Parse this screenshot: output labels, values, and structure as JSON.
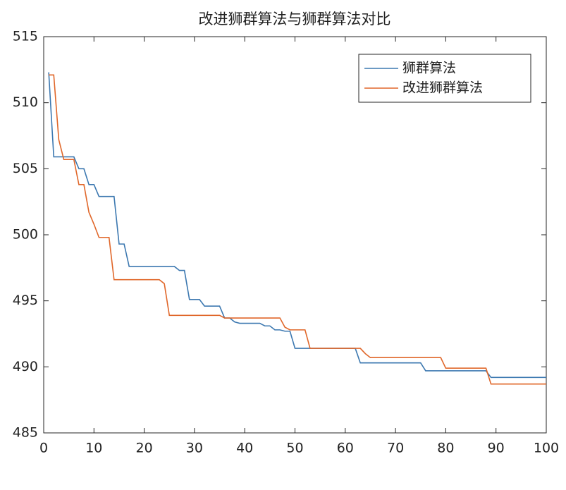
{
  "chart_data": {
    "type": "line",
    "title": "改进狮群算法与狮群算法对比",
    "x": [
      1,
      2,
      3,
      4,
      5,
      6,
      7,
      8,
      9,
      10,
      11,
      12,
      13,
      14,
      15,
      16,
      17,
      18,
      19,
      20,
      21,
      22,
      23,
      24,
      25,
      26,
      27,
      28,
      29,
      30,
      31,
      32,
      33,
      34,
      35,
      36,
      37,
      38,
      39,
      40,
      41,
      42,
      43,
      44,
      45,
      46,
      47,
      48,
      49,
      50,
      51,
      52,
      53,
      54,
      55,
      56,
      57,
      58,
      59,
      60,
      61,
      62,
      63,
      64,
      65,
      66,
      67,
      68,
      69,
      70,
      71,
      72,
      73,
      74,
      75,
      76,
      77,
      78,
      79,
      80,
      81,
      82,
      83,
      84,
      85,
      86,
      87,
      88,
      89,
      90,
      91,
      92,
      93,
      94,
      95,
      96,
      97,
      98,
      99,
      100
    ],
    "series": [
      {
        "name": "狮群算法",
        "color": "#3c78b0",
        "values": [
          512.3,
          505.9,
          505.9,
          505.9,
          505.9,
          505.9,
          505.0,
          505.0,
          503.8,
          503.8,
          502.9,
          502.9,
          502.9,
          502.9,
          499.3,
          499.3,
          497.6,
          497.6,
          497.6,
          497.6,
          497.6,
          497.6,
          497.6,
          497.6,
          497.6,
          497.6,
          497.3,
          497.3,
          495.1,
          495.1,
          495.1,
          494.6,
          494.6,
          494.6,
          494.6,
          493.7,
          493.7,
          493.4,
          493.3,
          493.3,
          493.3,
          493.3,
          493.3,
          493.1,
          493.1,
          492.8,
          492.8,
          492.7,
          492.7,
          491.4,
          491.4,
          491.4,
          491.4,
          491.4,
          491.4,
          491.4,
          491.4,
          491.4,
          491.4,
          491.4,
          491.4,
          491.4,
          490.3,
          490.3,
          490.3,
          490.3,
          490.3,
          490.3,
          490.3,
          490.3,
          490.3,
          490.3,
          490.3,
          490.3,
          490.3,
          489.7,
          489.7,
          489.7,
          489.7,
          489.7,
          489.7,
          489.7,
          489.7,
          489.7,
          489.7,
          489.7,
          489.7,
          489.7,
          489.2,
          489.2,
          489.2,
          489.2,
          489.2,
          489.2,
          489.2,
          489.2,
          489.2,
          489.2,
          489.2,
          489.2
        ]
      },
      {
        "name": "改进狮群算法",
        "color": "#e0672a",
        "values": [
          512.1,
          512.1,
          507.2,
          505.7,
          505.7,
          505.7,
          503.8,
          503.8,
          501.7,
          500.8,
          499.8,
          499.8,
          499.8,
          496.6,
          496.6,
          496.6,
          496.6,
          496.6,
          496.6,
          496.6,
          496.6,
          496.6,
          496.6,
          496.3,
          493.9,
          493.9,
          493.9,
          493.9,
          493.9,
          493.9,
          493.9,
          493.9,
          493.9,
          493.9,
          493.9,
          493.7,
          493.7,
          493.7,
          493.7,
          493.7,
          493.7,
          493.7,
          493.7,
          493.7,
          493.7,
          493.7,
          493.7,
          493.0,
          492.8,
          492.8,
          492.8,
          492.8,
          491.4,
          491.4,
          491.4,
          491.4,
          491.4,
          491.4,
          491.4,
          491.4,
          491.4,
          491.4,
          491.4,
          491.0,
          490.7,
          490.7,
          490.7,
          490.7,
          490.7,
          490.7,
          490.7,
          490.7,
          490.7,
          490.7,
          490.7,
          490.7,
          490.7,
          490.7,
          490.7,
          489.9,
          489.9,
          489.9,
          489.9,
          489.9,
          489.9,
          489.9,
          489.9,
          489.9,
          488.7,
          488.7,
          488.7,
          488.7,
          488.7,
          488.7,
          488.7,
          488.7,
          488.7,
          488.7,
          488.7,
          488.7
        ]
      }
    ],
    "xlim": [
      0,
      100
    ],
    "xticks": [
      0,
      10,
      20,
      30,
      40,
      50,
      60,
      70,
      80,
      90,
      100
    ],
    "ylim": [
      485,
      515
    ],
    "yticks": [
      485,
      490,
      495,
      500,
      505,
      510,
      515
    ],
    "legend": "top-right",
    "grid": false
  }
}
